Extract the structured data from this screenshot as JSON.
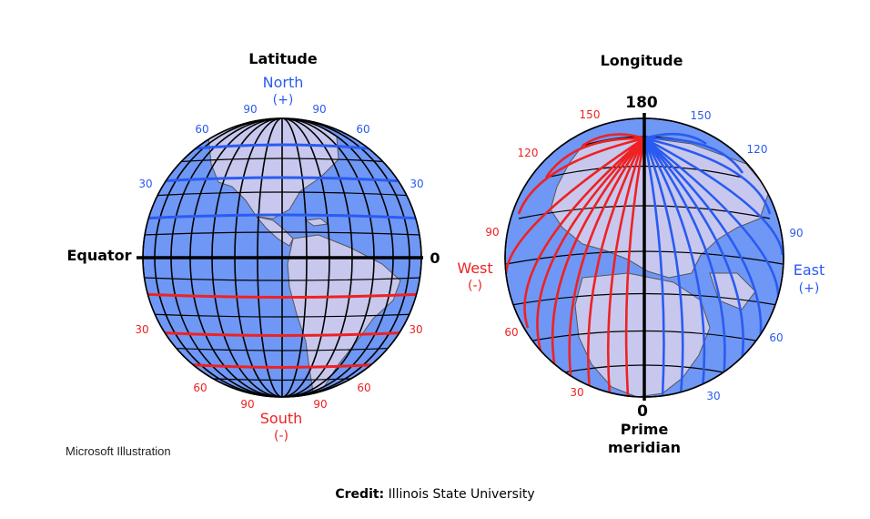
{
  "latitude_globe": {
    "title": "Latitude",
    "north_label": "North",
    "north_sign": "(+)",
    "south_label": "South",
    "south_sign": "(-)",
    "equator_label": "Equator",
    "equator_value": "0",
    "north_ticks": {
      "top_left": "90",
      "top_right": "90",
      "left_60": "60",
      "right_60": "60",
      "left_30": "30",
      "right_30": "30"
    },
    "south_ticks": {
      "left_30": "30",
      "right_30": "30",
      "left_60": "60",
      "right_60": "60",
      "bottom_left": "90",
      "bottom_right": "90"
    }
  },
  "longitude_globe": {
    "title": "Longitude",
    "top_value": "180",
    "bottom_value": "0",
    "prime_label_1": "Prime",
    "prime_label_2": "meridian",
    "west_label": "West",
    "west_sign": "(-)",
    "east_label": "East",
    "east_sign": "(+)",
    "west_ticks": {
      "t150": "150",
      "t120": "120",
      "t90": "90",
      "t60": "60",
      "t30": "30"
    },
    "east_ticks": {
      "t150": "150",
      "t120": "120",
      "t90": "90",
      "t60": "60",
      "t30": "30"
    }
  },
  "illustration_note": "Microsoft Illustration",
  "credit": {
    "label": "Credit:",
    "text": "Illinois State University"
  },
  "colors": {
    "ocean": "#6f97f5",
    "land": "#c8c8ee",
    "north": "#2a5bf0",
    "south": "#ee2222",
    "grid": "#000000"
  }
}
